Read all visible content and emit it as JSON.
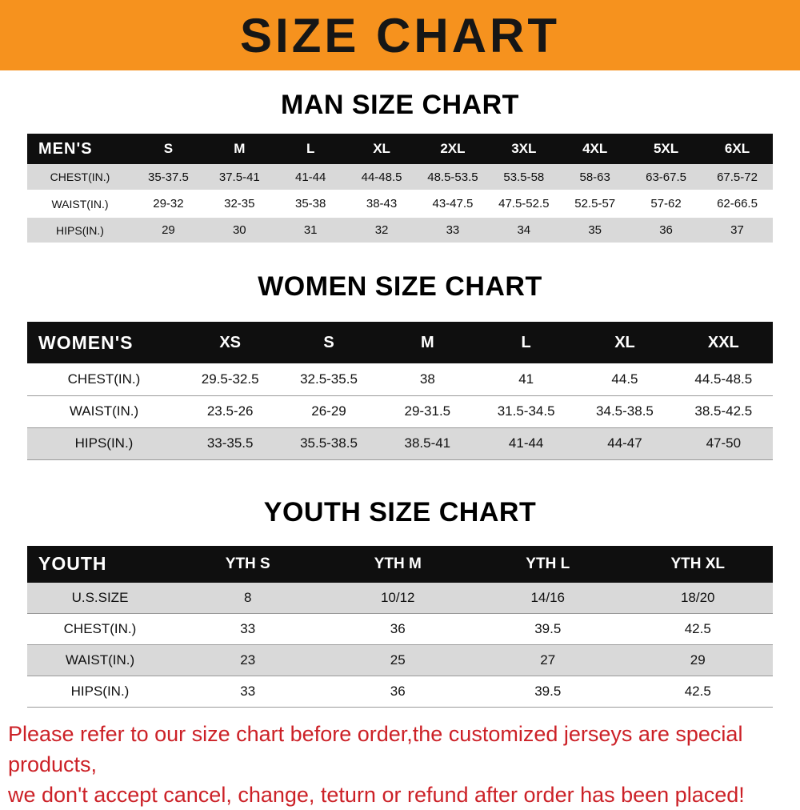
{
  "banner": {
    "title": "SIZE CHART",
    "bg_color": "#f6921e"
  },
  "chart_data": [
    {
      "type": "table",
      "title": "MAN SIZE CHART",
      "header_label": "MEN'S",
      "columns": [
        "S",
        "M",
        "L",
        "XL",
        "2XL",
        "3XL",
        "4XL",
        "5XL",
        "6XL"
      ],
      "rows": [
        {
          "label": "CHEST(IN.)",
          "values": [
            "35-37.5",
            "37.5-41",
            "41-44",
            "44-48.5",
            "48.5-53.5",
            "53.5-58",
            "58-63",
            "63-67.5",
            "67.5-72"
          ]
        },
        {
          "label": "WAIST(IN.)",
          "values": [
            "29-32",
            "32-35",
            "35-38",
            "38-43",
            "43-47.5",
            "47.5-52.5",
            "52.5-57",
            "57-62",
            "62-66.5"
          ]
        },
        {
          "label": "HIPS(IN.)",
          "values": [
            "29",
            "30",
            "31",
            "32",
            "33",
            "34",
            "35",
            "36",
            "37"
          ]
        }
      ]
    },
    {
      "type": "table",
      "title": "WOMEN SIZE CHART",
      "header_label": "WOMEN'S",
      "columns": [
        "XS",
        "S",
        "M",
        "L",
        "XL",
        "XXL"
      ],
      "rows": [
        {
          "label": "CHEST(IN.)",
          "values": [
            "29.5-32.5",
            "32.5-35.5",
            "38",
            "41",
            "44.5",
            "44.5-48.5"
          ]
        },
        {
          "label": "WAIST(IN.)",
          "values": [
            "23.5-26",
            "26-29",
            "29-31.5",
            "31.5-34.5",
            "34.5-38.5",
            "38.5-42.5"
          ]
        },
        {
          "label": "HIPS(IN.)",
          "values": [
            "33-35.5",
            "35.5-38.5",
            "38.5-41",
            "41-44",
            "44-47",
            "47-50"
          ]
        }
      ]
    },
    {
      "type": "table",
      "title": "YOUTH SIZE CHART",
      "header_label": "YOUTH",
      "columns": [
        "YTH S",
        "YTH M",
        "YTH L",
        "YTH XL"
      ],
      "rows": [
        {
          "label": "U.S.SIZE",
          "values": [
            "8",
            "10/12",
            "14/16",
            "18/20"
          ]
        },
        {
          "label": "CHEST(IN.)",
          "values": [
            "33",
            "36",
            "39.5",
            "42.5"
          ]
        },
        {
          "label": "WAIST(IN.)",
          "values": [
            "23",
            "25",
            "27",
            "29"
          ]
        },
        {
          "label": "HIPS(IN.)",
          "values": [
            "33",
            "36",
            "39.5",
            "42.5"
          ]
        }
      ]
    }
  ],
  "footer": {
    "line1": "Please refer to our size chart before order,the customized jerseys are special products,",
    "line2": "we don't accept cancel, change, teturn or refund after order has been placed!",
    "text_color": "#cc2127"
  }
}
